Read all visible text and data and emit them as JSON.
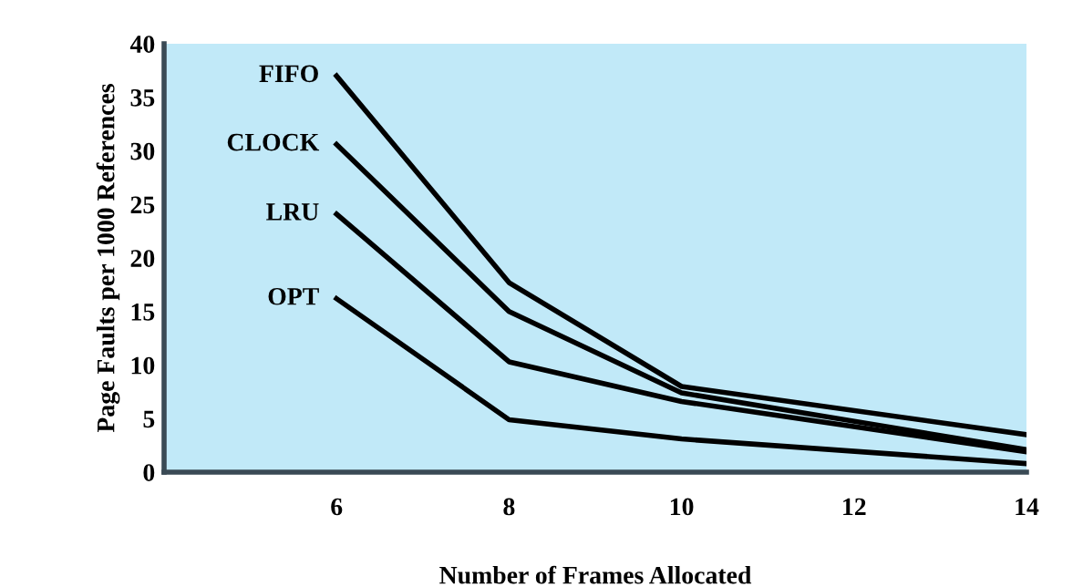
{
  "chart_data": {
    "type": "line",
    "xlabel": "Number of Frames Allocated",
    "ylabel": "Page Faults per 1000 References",
    "x": [
      6,
      8,
      10,
      14
    ],
    "series": [
      {
        "name": "FIFO",
        "color": "#000000",
        "values": [
          37,
          17.7,
          8.0,
          3.5
        ]
      },
      {
        "name": "CLOCK",
        "color": "#000000",
        "values": [
          30.6,
          15,
          7.4,
          2.1
        ]
      },
      {
        "name": "LRU",
        "color": "#000000",
        "values": [
          24.1,
          10.3,
          6.6,
          1.9
        ]
      },
      {
        "name": "OPT",
        "color": "#000000",
        "values": [
          16.2,
          4.9,
          3.1,
          0.8
        ]
      }
    ],
    "xlim": [
      4,
      14
    ],
    "ylim": [
      0,
      40
    ],
    "xticks": [
      6,
      8,
      10,
      12,
      14
    ],
    "yticks": [
      0,
      5,
      10,
      15,
      20,
      25,
      30,
      35,
      40
    ],
    "grid": false,
    "legend": false,
    "marker": "none",
    "line_style": "solid"
  }
}
